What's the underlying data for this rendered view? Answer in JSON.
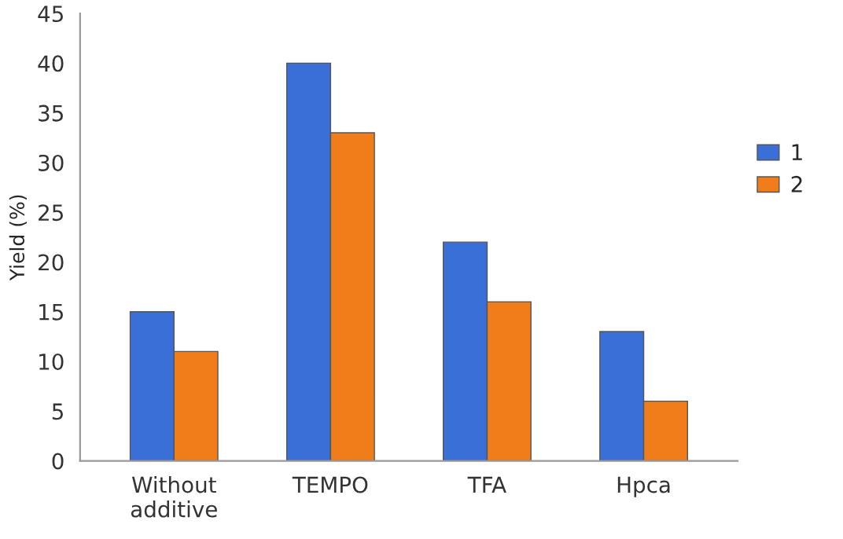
{
  "chart_data": {
    "type": "bar",
    "ylabel": "Yield (%)",
    "categories": [
      "Without additive",
      "TEMPO",
      "TFA",
      "Hpca"
    ],
    "series": [
      {
        "name": "1",
        "color": "#3a6fd8",
        "values": [
          15,
          40,
          22,
          13
        ]
      },
      {
        "name": "2",
        "color": "#f07c1a",
        "values": [
          11,
          33,
          16,
          6
        ]
      }
    ],
    "ylim": [
      0,
      45
    ],
    "yticks": [
      0,
      5,
      10,
      15,
      20,
      25,
      30,
      35,
      40,
      45
    ],
    "grid": false,
    "legend": "right"
  }
}
